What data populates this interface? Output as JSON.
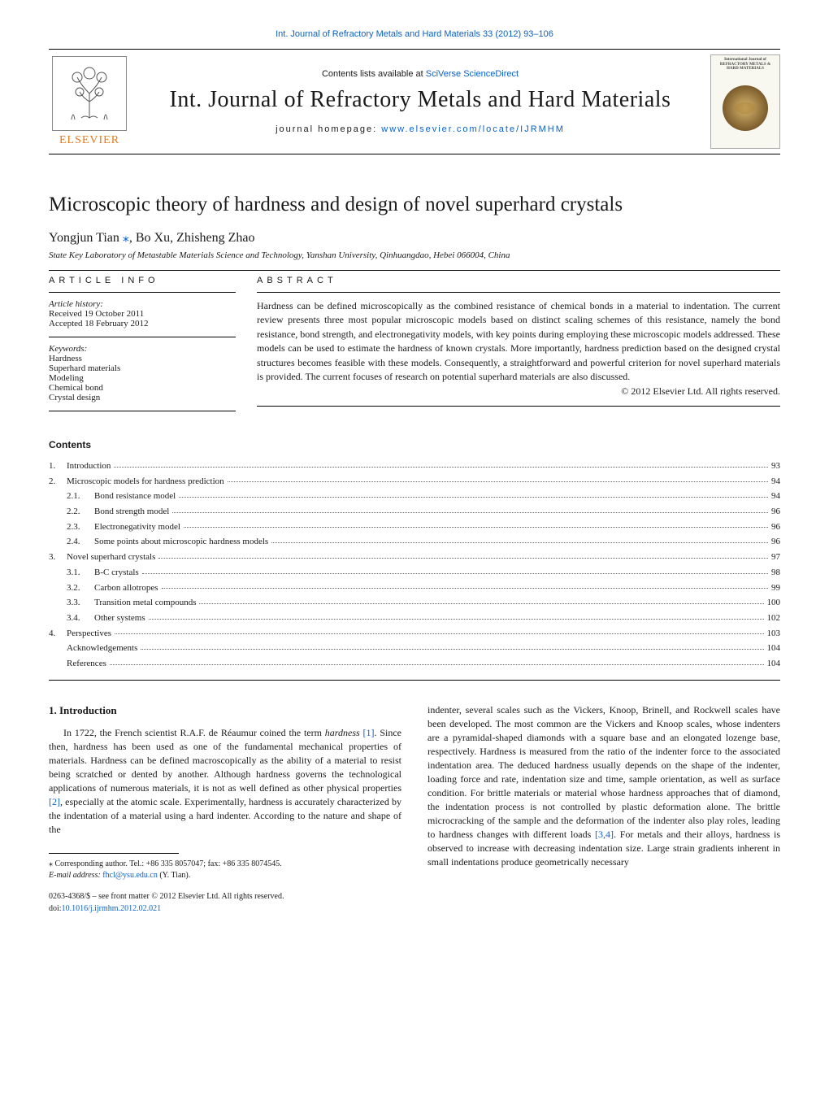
{
  "top_citation": "Int. Journal of Refractory Metals and Hard Materials 33 (2012) 93–106",
  "masthead": {
    "contents_prefix": "Contents lists available at ",
    "contents_link": "SciVerse ScienceDirect",
    "journal_title": "Int. Journal of Refractory Metals and Hard Materials",
    "homepage_prefix": "journal homepage: ",
    "homepage_link": "www.elsevier.com/locate/IJRMHM",
    "elsevier": "ELSEVIER",
    "cover_text": "International Journal of\nREFRACTORY METALS\n& HARD MATERIALS"
  },
  "article": {
    "title": "Microscopic theory of hardness and design of novel superhard crystals",
    "authors_pre": "Yongjun Tian ",
    "authors_star": "⁎",
    "authors_post": ", Bo Xu, Zhisheng Zhao",
    "affiliation": "State Key Laboratory of Metastable Materials Science and Technology, Yanshan University, Qinhuangdao, Hebei 066004, China"
  },
  "info": {
    "head": "ARTICLE INFO",
    "history_label": "Article history:",
    "received": "Received 19 October 2011",
    "accepted": "Accepted 18 February 2012",
    "kw_label": "Keywords:",
    "kw": [
      "Hardness",
      "Superhard materials",
      "Modeling",
      "Chemical bond",
      "Crystal design"
    ]
  },
  "abstract": {
    "head": "ABSTRACT",
    "text": "Hardness can be defined microscopically as the combined resistance of chemical bonds in a material to indentation. The current review presents three most popular microscopic models based on distinct scaling schemes of this resistance, namely the bond resistance, bond strength, and electronegativity models, with key points during employing these microscopic models addressed. These models can be used to estimate the hardness of known crystals. More importantly, hardness prediction based on the designed crystal structures becomes feasible with these models. Consequently, a straightforward and powerful criterion for novel superhard materials is provided. The current focuses of research on potential superhard materials are also discussed.",
    "copyright": "© 2012 Elsevier Ltd. All rights reserved."
  },
  "contents": {
    "head": "Contents",
    "items": [
      {
        "num": "1.",
        "label": "Introduction",
        "page": "93"
      },
      {
        "num": "2.",
        "label": "Microscopic models for hardness prediction",
        "page": "94"
      },
      {
        "sub": true,
        "num": "2.1.",
        "label": "Bond resistance model",
        "page": "94"
      },
      {
        "sub": true,
        "num": "2.2.",
        "label": "Bond strength model",
        "page": "96"
      },
      {
        "sub": true,
        "num": "2.3.",
        "label": "Electronegativity model",
        "page": "96"
      },
      {
        "sub": true,
        "num": "2.4.",
        "label": "Some points about microscopic hardness models",
        "page": "96"
      },
      {
        "num": "3.",
        "label": "Novel superhard crystals",
        "page": "97"
      },
      {
        "sub": true,
        "num": "3.1.",
        "label": "B-C crystals",
        "page": "98"
      },
      {
        "sub": true,
        "num": "3.2.",
        "label": "Carbon allotropes",
        "page": "99"
      },
      {
        "sub": true,
        "num": "3.3.",
        "label": "Transition metal compounds",
        "page": "100"
      },
      {
        "sub": true,
        "num": "3.4.",
        "label": "Other systems",
        "page": "102"
      },
      {
        "num": "4.",
        "label": "Perspectives",
        "page": "103"
      },
      {
        "num": "",
        "label": "Acknowledgements",
        "page": "104"
      },
      {
        "num": "",
        "label": "References",
        "page": "104"
      }
    ]
  },
  "body": {
    "sec_title": "1. Introduction",
    "left_a": "In 1722, the French scientist R.A.F. de Réaumur coined the term ",
    "left_b_italic": "hardness",
    "left_c": " ",
    "ref1": "[1]",
    "left_d": ". Since then, hardness has been used as one of the fundamental mechanical properties of materials. Hardness can be defined macroscopically as the ability of a material to resist being scratched or dented by another. Although hardness governs the technological applications of numerous materials, it is not as well defined as other physical properties ",
    "ref2": "[2]",
    "left_e": ", especially at the atomic scale. Experimentally, hardness is accurately characterized by the indentation of a material using a hard indenter. According to the nature and shape of the",
    "right_a": "indenter, several scales such as the Vickers, Knoop, Brinell, and Rockwell scales have been developed. The most common are the Vickers and Knoop scales, whose indenters are a pyramidal-shaped diamonds with a square base and an elongated lozenge base, respectively. Hardness is measured from the ratio of the indenter force to the associated indentation area. The deduced hardness usually depends on the shape of the indenter, loading force and rate, indentation size and time, sample orientation, as well as surface condition. For brittle materials or material whose hardness approaches that of diamond, the indentation process is not controlled by plastic deformation alone. The brittle microcracking of the sample and the deformation of the indenter also play roles, leading to hardness changes with different loads ",
    "ref34": "[3,4]",
    "right_b": ". For metals and their alloys, hardness is observed to increase with decreasing indentation size. Large strain gradients inherent in small indentations produce geometrically necessary"
  },
  "footnote": {
    "corr_label": "⁎ Corresponding author. Tel.: +86 335 8057047; fax: +86 335 8074545.",
    "email_label": "E-mail address:",
    "email": "fhcl@ysu.edu.cn",
    "email_who": "(Y. Tian)."
  },
  "footer": {
    "line1": "0263-4368/$ – see front matter © 2012 Elsevier Ltd. All rights reserved.",
    "doi_label": "doi:",
    "doi": "10.1016/j.ijrmhm.2012.02.021"
  },
  "colors": {
    "link": "#0b60c4",
    "elsevier": "#e67817"
  }
}
